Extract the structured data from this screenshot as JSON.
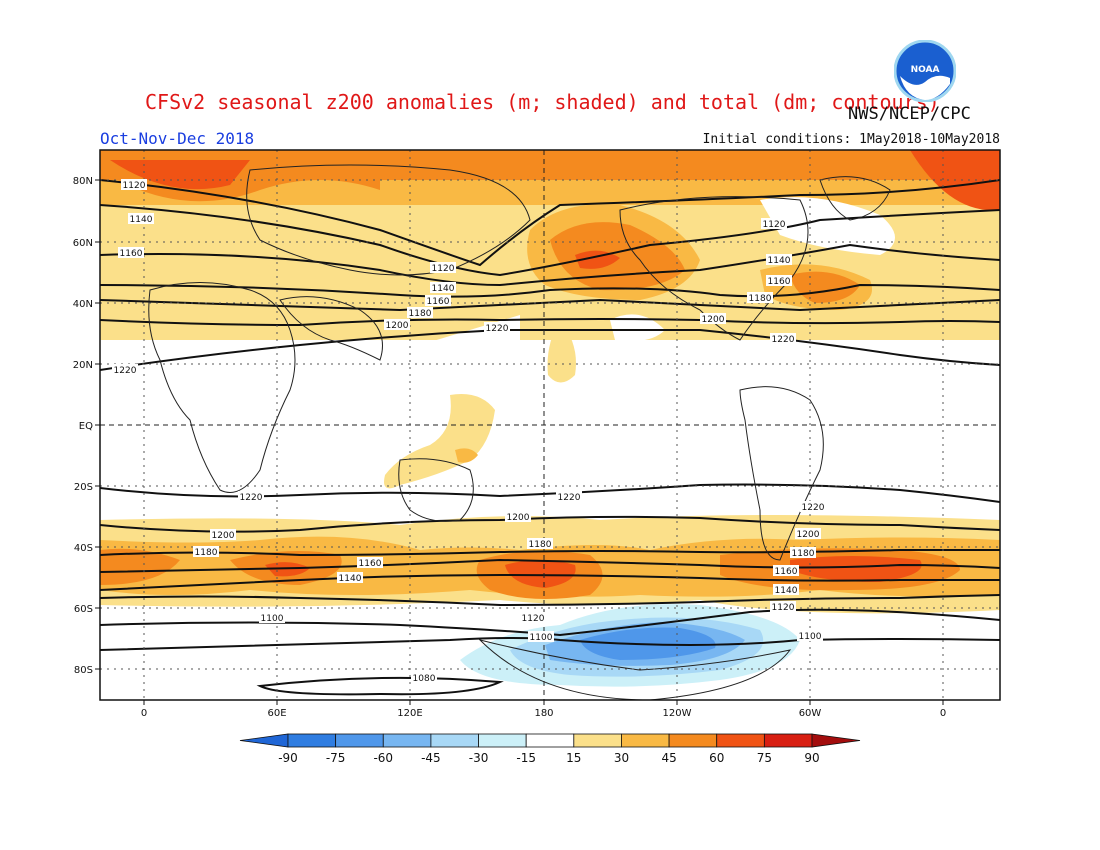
{
  "title": "CFSv2 seasonal z200 anomalies (m; shaded) and total (dm; contours)",
  "source": "NWS/NCEP/CPC",
  "season": "Oct-Nov-Dec 2018",
  "initial_conditions": "Initial conditions: 1May2018-10May2018",
  "logo_text": "NOAA",
  "lat_labels": [
    "80N",
    "60N",
    "40N",
    "20N",
    "EQ",
    "20S",
    "40S",
    "60S",
    "80S"
  ],
  "lon_labels": [
    "0",
    "60E",
    "120E",
    "180",
    "120W",
    "60W",
    "0"
  ],
  "colorbar": {
    "labels": [
      "-90",
      "-75",
      "-60",
      "-45",
      "-30",
      "-15",
      "15",
      "30",
      "45",
      "60",
      "75",
      "90"
    ],
    "colors": [
      "#1f66d6",
      "#2f7de1",
      "#4f97ea",
      "#77b6f1",
      "#a8d8f6",
      "#ccf0f8",
      "#ffffff",
      "#fbe08a",
      "#f9b944",
      "#f48a1f",
      "#f05314",
      "#d81f12",
      "#a30d0d"
    ]
  },
  "contour_labels": [
    "1120",
    "1140",
    "1160",
    "1180",
    "1200",
    "1220",
    "1100",
    "1080"
  ],
  "anomaly_legend_units": "m",
  "contour_units": "dm"
}
